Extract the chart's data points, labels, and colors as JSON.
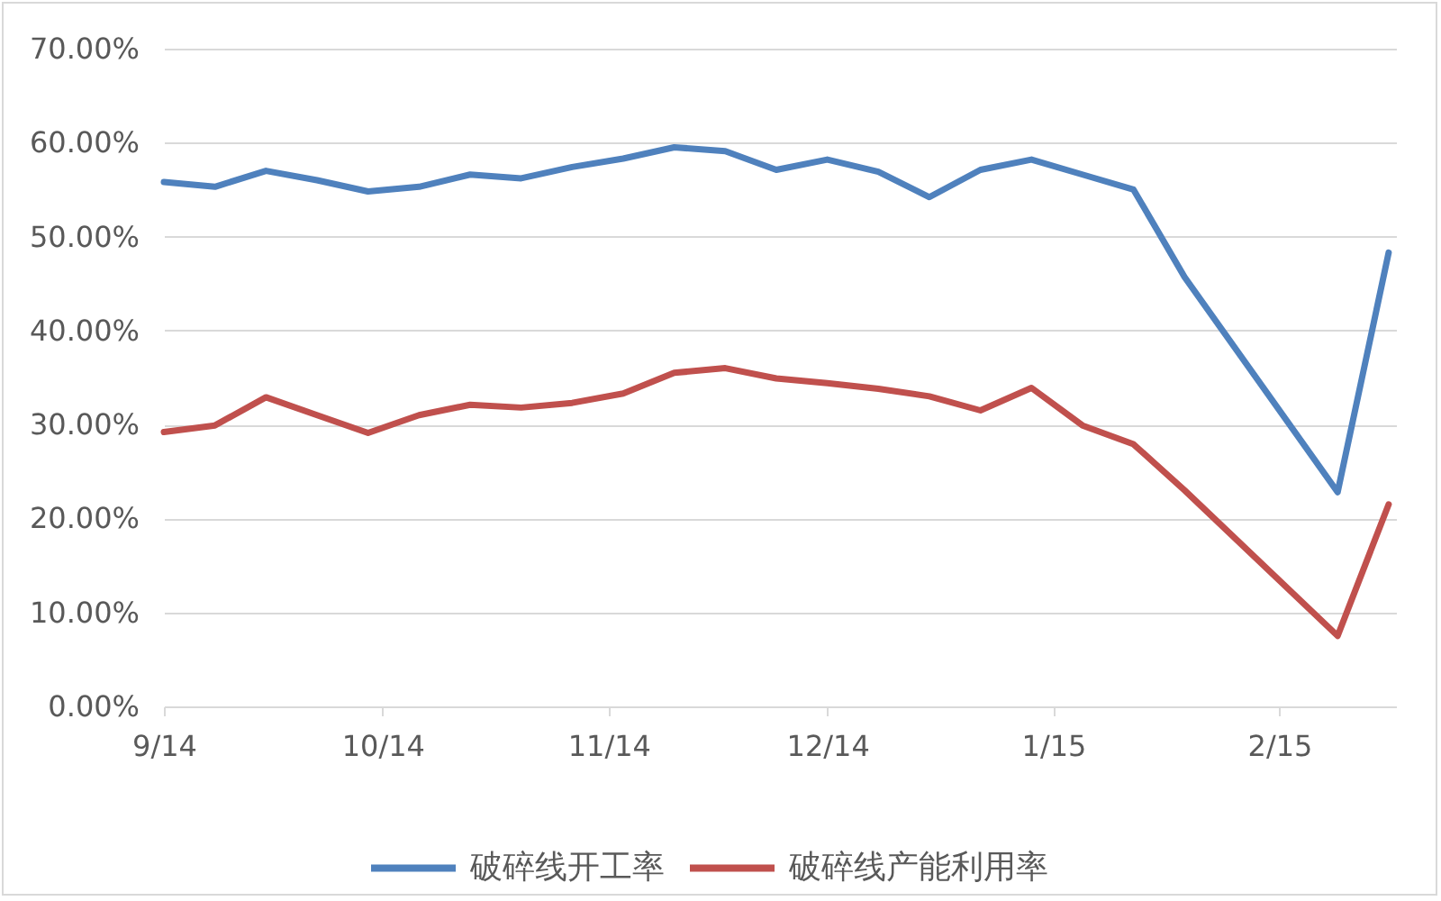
{
  "chart_data": {
    "type": "line",
    "x": [
      "2014-09-01",
      "2014-09-08",
      "2014-09-15",
      "2014-09-22",
      "2014-09-29",
      "2014-10-06",
      "2014-10-13",
      "2014-10-20",
      "2014-10-27",
      "2014-11-03",
      "2014-11-10",
      "2014-11-17",
      "2014-11-24",
      "2014-12-01",
      "2014-12-08",
      "2014-12-15",
      "2014-12-22",
      "2014-12-29",
      "2015-01-05",
      "2015-01-12",
      "2015-01-19",
      "2015-02-09",
      "2015-02-16"
    ],
    "series": [
      {
        "name": "破碎线开工率",
        "color": "#4f81bd",
        "values": [
          55.8,
          55.3,
          57.0,
          56.0,
          54.8,
          55.3,
          56.6,
          56.2,
          57.4,
          58.3,
          59.5,
          59.1,
          57.1,
          58.2,
          56.9,
          54.2,
          57.1,
          58.2,
          56.6,
          55.0,
          45.7,
          22.8,
          48.3
        ]
      },
      {
        "name": "破碎线产能利用率",
        "color": "#c0504d",
        "values": [
          29.2,
          29.9,
          32.9,
          31.0,
          29.1,
          31.0,
          32.1,
          31.8,
          32.3,
          33.3,
          35.5,
          36.0,
          34.9,
          34.4,
          33.8,
          33.0,
          31.5,
          33.9,
          29.9,
          27.9,
          23.0,
          7.5,
          21.5
        ]
      }
    ],
    "xlim": [
      "2014-09-01",
      "2015-02-17"
    ],
    "xticks": [
      {
        "value": "2014-09",
        "label": "9/14"
      },
      {
        "value": "2014-10",
        "label": "10/14"
      },
      {
        "value": "2014-11",
        "label": "11/14"
      },
      {
        "value": "2014-12",
        "label": "12/14"
      },
      {
        "value": "2015-01",
        "label": "1/15"
      },
      {
        "value": "2015-02",
        "label": "2/15"
      }
    ],
    "ylim": [
      0,
      70
    ],
    "yticks": [
      {
        "value": 0,
        "label": "0.00%"
      },
      {
        "value": 10,
        "label": "10.00%"
      },
      {
        "value": 20,
        "label": "20.00%"
      },
      {
        "value": 30,
        "label": "30.00%"
      },
      {
        "value": 40,
        "label": "40.00%"
      },
      {
        "value": 50,
        "label": "50.00%"
      },
      {
        "value": 60,
        "label": "60.00%"
      },
      {
        "value": 70,
        "label": "70.00%"
      }
    ],
    "grid": "y",
    "legend": "bottom",
    "line_style": "solid"
  }
}
